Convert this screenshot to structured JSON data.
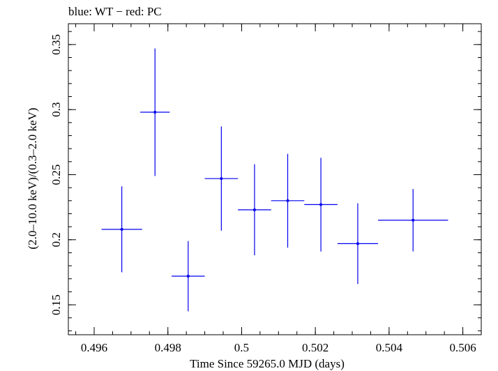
{
  "chart_data": {
    "type": "scatter",
    "title": "blue: WT − red: PC",
    "xlabel": "Time Since 59265.0 MJD (days)",
    "ylabel": "(2.0–10.0 keV)/(0.3–2.0 keV)",
    "xlim": [
      0.4953,
      0.5065
    ],
    "ylim": [
      0.127,
      0.366
    ],
    "x_ticks": [
      0.496,
      0.498,
      0.5,
      0.502,
      0.504,
      0.506
    ],
    "x_tick_labels": [
      "0.496",
      "0.498",
      "0.5",
      "0.502",
      "0.504",
      "0.506"
    ],
    "y_ticks": [
      0.15,
      0.2,
      0.25,
      0.3,
      0.35
    ],
    "y_tick_labels": [
      "0.15",
      "0.2",
      "0.25",
      "0.3",
      "0.35"
    ],
    "grid": false,
    "series": [
      {
        "name": "WT",
        "color": "#0000ee",
        "points": [
          {
            "x": 0.49675,
            "y": 0.208,
            "xerr_low": 0.00055,
            "xerr_high": 0.00055,
            "yerr_low": 0.033,
            "yerr_high": 0.033
          },
          {
            "x": 0.49765,
            "y": 0.298,
            "xerr_low": 0.0004,
            "xerr_high": 0.0004,
            "yerr_low": 0.049,
            "yerr_high": 0.049
          },
          {
            "x": 0.49855,
            "y": 0.172,
            "xerr_low": 0.00045,
            "xerr_high": 0.00045,
            "yerr_low": 0.027,
            "yerr_high": 0.027
          },
          {
            "x": 0.49945,
            "y": 0.247,
            "xerr_low": 0.00045,
            "xerr_high": 0.00045,
            "yerr_low": 0.04,
            "yerr_high": 0.04
          },
          {
            "x": 0.50035,
            "y": 0.223,
            "xerr_low": 0.00045,
            "xerr_high": 0.00045,
            "yerr_low": 0.035,
            "yerr_high": 0.035
          },
          {
            "x": 0.50125,
            "y": 0.23,
            "xerr_low": 0.00045,
            "xerr_high": 0.00045,
            "yerr_low": 0.036,
            "yerr_high": 0.036
          },
          {
            "x": 0.50215,
            "y": 0.227,
            "xerr_low": 0.00045,
            "xerr_high": 0.00045,
            "yerr_low": 0.036,
            "yerr_high": 0.036
          },
          {
            "x": 0.50315,
            "y": 0.197,
            "xerr_low": 0.00055,
            "xerr_high": 0.00055,
            "yerr_low": 0.031,
            "yerr_high": 0.031
          },
          {
            "x": 0.50465,
            "y": 0.215,
            "xerr_low": 0.00095,
            "xerr_high": 0.00095,
            "yerr_low": 0.024,
            "yerr_high": 0.024
          }
        ]
      }
    ]
  }
}
